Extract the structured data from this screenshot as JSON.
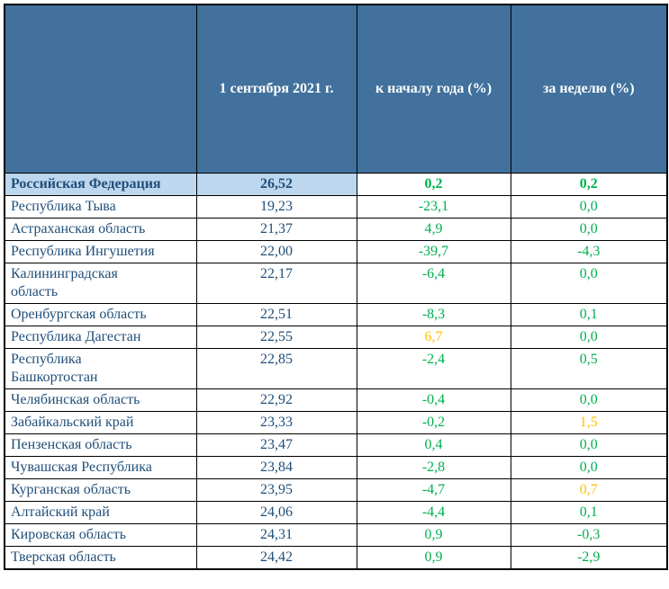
{
  "table": {
    "headers": {
      "region": "",
      "date": "1 сентября 2021 г.",
      "ytd": "к началу года (%)",
      "week": "за неделю (%)"
    },
    "rows": [
      {
        "region": "Российская Федерация",
        "value": "26,52",
        "ytd": "0,2",
        "week": "0,2",
        "emphasis": true,
        "highlight": true,
        "tall": false,
        "ytd_color": "green",
        "week_color": "green"
      },
      {
        "region": "Республика Тыва",
        "value": "19,23",
        "ytd": "-23,1",
        "week": "0,0",
        "emphasis": false,
        "highlight": false,
        "tall": false,
        "ytd_color": "green",
        "week_color": "green"
      },
      {
        "region": "Астраханская область",
        "value": "21,37",
        "ytd": "4,9",
        "week": "0,0",
        "emphasis": false,
        "highlight": false,
        "tall": false,
        "ytd_color": "green",
        "week_color": "green"
      },
      {
        "region": "Республика Ингушетия",
        "value": "22,00",
        "ytd": "-39,7",
        "week": "-4,3",
        "emphasis": false,
        "highlight": false,
        "tall": false,
        "ytd_color": "green",
        "week_color": "green"
      },
      {
        "region": "Калининградская область",
        "value": "22,17",
        "ytd": "-6,4",
        "week": "0,0",
        "emphasis": false,
        "highlight": false,
        "tall": true,
        "ytd_color": "green",
        "week_color": "green"
      },
      {
        "region": "Оренбургская область",
        "value": "22,51",
        "ytd": "-8,3",
        "week": "0,1",
        "emphasis": false,
        "highlight": false,
        "tall": false,
        "ytd_color": "green",
        "week_color": "green"
      },
      {
        "region": "Республика Дагестан",
        "value": "22,55",
        "ytd": "6,7",
        "week": "0,0",
        "emphasis": false,
        "highlight": false,
        "tall": false,
        "ytd_color": "orange",
        "week_color": "green"
      },
      {
        "region": "Республика Башкортостан",
        "value": "22,85",
        "ytd": "-2,4",
        "week": "0,5",
        "emphasis": false,
        "highlight": false,
        "tall": true,
        "ytd_color": "green",
        "week_color": "green"
      },
      {
        "region": "Челябинская область",
        "value": "22,92",
        "ytd": "-0,4",
        "week": "0,0",
        "emphasis": false,
        "highlight": false,
        "tall": false,
        "ytd_color": "green",
        "week_color": "green"
      },
      {
        "region": "Забайкальский край",
        "value": "23,33",
        "ytd": "-0,2",
        "week": "1,5",
        "emphasis": false,
        "highlight": false,
        "tall": false,
        "ytd_color": "green",
        "week_color": "orange"
      },
      {
        "region": "Пензенская область",
        "value": "23,47",
        "ytd": "0,4",
        "week": "0,0",
        "emphasis": false,
        "highlight": false,
        "tall": false,
        "ytd_color": "green",
        "week_color": "green"
      },
      {
        "region": "Чувашская Республика",
        "value": "23,84",
        "ytd": "-2,8",
        "week": "0,0",
        "emphasis": false,
        "highlight": false,
        "tall": false,
        "ytd_color": "green",
        "week_color": "green"
      },
      {
        "region": "Курганская область",
        "value": "23,95",
        "ytd": "-4,7",
        "week": "0,7",
        "emphasis": false,
        "highlight": false,
        "tall": false,
        "ytd_color": "green",
        "week_color": "orange"
      },
      {
        "region": "Алтайский край",
        "value": "24,06",
        "ytd": "-4,4",
        "week": "0,1",
        "emphasis": false,
        "highlight": false,
        "tall": false,
        "ytd_color": "green",
        "week_color": "green"
      },
      {
        "region": "Кировская область",
        "value": "24,31",
        "ytd": "0,9",
        "week": "-0,3",
        "emphasis": false,
        "highlight": false,
        "tall": false,
        "ytd_color": "green",
        "week_color": "green"
      },
      {
        "region": "Тверская область",
        "value": "24,42",
        "ytd": "0,9",
        "week": "-2,9",
        "emphasis": false,
        "highlight": false,
        "tall": false,
        "ytd_color": "green",
        "week_color": "green"
      }
    ]
  },
  "colors": {
    "header_bg": "#41719C",
    "header_text": "#FFFFFF",
    "row_text": "#1F4E79",
    "highlight_bg": "#BDD7EE",
    "positive_green": "#00B050",
    "warning_orange": "#FFC000",
    "border": "#000000"
  }
}
